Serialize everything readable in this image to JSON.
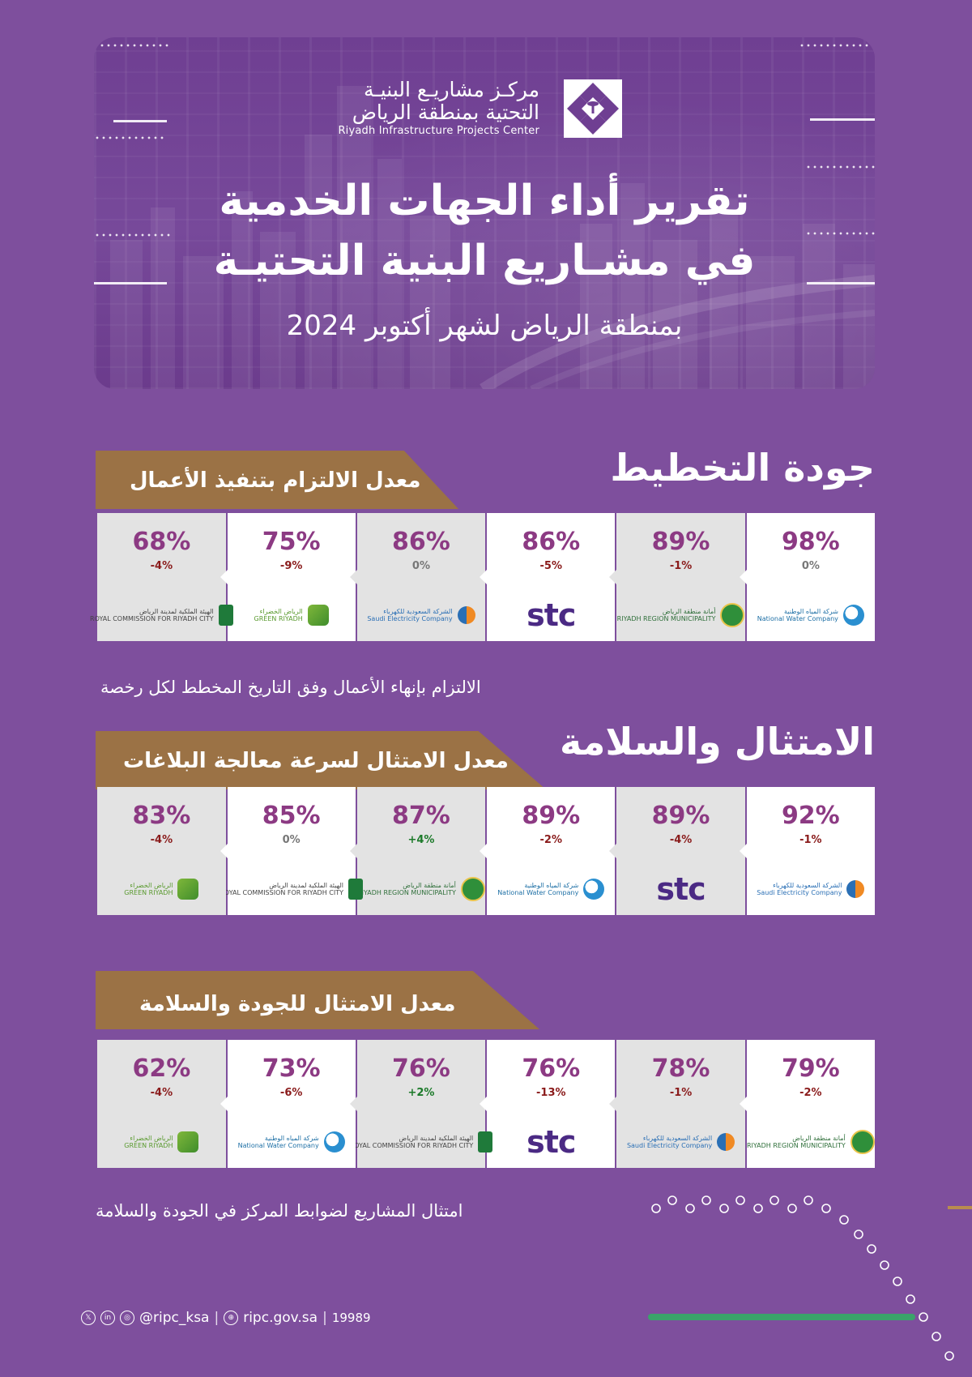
{
  "hero": {
    "logo_ar_line1": "مركـز مشاريـع البنيـة",
    "logo_ar_line2": "التحتية بمنطقة الرياض",
    "logo_en": "Riyadh Infrastructure Projects Center",
    "title_line1": "تقرير أداء الجهات الخدمية",
    "title_line2": "في مشـاريع البنية التحتيـة",
    "subtitle": "بمنطقة الرياض لشهر أكتوبر 2024"
  },
  "sections": [
    {
      "heading": "جودة التخطيط",
      "tab_label": "معدل الالتزام بتنفيذ الأعمال",
      "caption": "الالتزام بإنهاء الأعمال وفق التاريخ المخطط لكل رخصة",
      "cards": [
        {
          "pct": "98%",
          "change": "0%",
          "trend": "zero",
          "logo": "nwc",
          "logo_ar": "شركة المياه الوطنية",
          "logo_en": "National Water Company"
        },
        {
          "pct": "89%",
          "change": "-1%",
          "trend": "neg",
          "logo": "amana",
          "logo_ar": "أمانة منطقة الرياض",
          "logo_en": "RIYADH REGION MUNICIPALITY"
        },
        {
          "pct": "86%",
          "change": "-5%",
          "trend": "neg",
          "logo": "stc",
          "logo_ar": "stc",
          "logo_en": ""
        },
        {
          "pct": "86%",
          "change": "0%",
          "trend": "zero",
          "logo": "sec",
          "logo_ar": "الشركة السعودية للكهرباء",
          "logo_en": "Saudi Electricity Company"
        },
        {
          "pct": "75%",
          "change": "-9%",
          "trend": "neg",
          "logo": "green",
          "logo_ar": "الرياض الخضراء",
          "logo_en": "GREEN RIYADH"
        },
        {
          "pct": "68%",
          "change": "-4%",
          "trend": "neg",
          "logo": "rcrc",
          "logo_ar": "الهيئة الملكية لمدينة الرياض",
          "logo_en": "ROYAL COMMISSION FOR RIYADH CITY"
        }
      ]
    },
    {
      "heading": "الامتثال والسلامة",
      "tab_label": "معدل الامتثال لسرعة معالجة البلاغات",
      "caption": "",
      "cards": [
        {
          "pct": "92%",
          "change": "-1%",
          "trend": "neg",
          "logo": "sec",
          "logo_ar": "الشركة السعودية للكهرباء",
          "logo_en": "Saudi Electricity Company"
        },
        {
          "pct": "89%",
          "change": "-4%",
          "trend": "neg",
          "logo": "stc",
          "logo_ar": "stc",
          "logo_en": ""
        },
        {
          "pct": "89%",
          "change": "-2%",
          "trend": "neg",
          "logo": "nwc",
          "logo_ar": "شركة المياه الوطنية",
          "logo_en": "National Water Company"
        },
        {
          "pct": "87%",
          "change": "+4%",
          "trend": "pos",
          "logo": "amana",
          "logo_ar": "أمانة منطقة الرياض",
          "logo_en": "RIYADH REGION MUNICIPALITY"
        },
        {
          "pct": "85%",
          "change": "0%",
          "trend": "zero",
          "logo": "rcrc",
          "logo_ar": "الهيئة الملكية لمدينة الرياض",
          "logo_en": "ROYAL COMMISSION FOR RIYADH CITY"
        },
        {
          "pct": "83%",
          "change": "-4%",
          "trend": "neg",
          "logo": "green",
          "logo_ar": "الرياض الخضراء",
          "logo_en": "GREEN RIYADH"
        }
      ]
    },
    {
      "heading": "",
      "tab_label": "معدل الامتثال للجودة والسلامة",
      "caption": "امتثال المشاريع لضوابط المركز في الجودة والسلامة",
      "cards": [
        {
          "pct": "79%",
          "change": "-2%",
          "trend": "neg",
          "logo": "amana",
          "logo_ar": "أمانة منطقة الرياض",
          "logo_en": "RIYADH REGION MUNICIPALITY"
        },
        {
          "pct": "78%",
          "change": "-1%",
          "trend": "neg",
          "logo": "sec",
          "logo_ar": "الشركة السعودية للكهرباء",
          "logo_en": "Saudi Electricity Company"
        },
        {
          "pct": "76%",
          "change": "-13%",
          "trend": "neg",
          "logo": "stc",
          "logo_ar": "stc",
          "logo_en": ""
        },
        {
          "pct": "76%",
          "change": "+2%",
          "trend": "pos",
          "logo": "rcrc",
          "logo_ar": "الهيئة الملكية لمدينة الرياض",
          "logo_en": "ROYAL COMMISSION FOR RIYADH CITY"
        },
        {
          "pct": "73%",
          "change": "-6%",
          "trend": "neg",
          "logo": "nwc",
          "logo_ar": "شركة المياه الوطنية",
          "logo_en": "National Water Company"
        },
        {
          "pct": "62%",
          "change": "-4%",
          "trend": "neg",
          "logo": "green",
          "logo_ar": "الرياض الخضراء",
          "logo_en": "GREEN RIYADH"
        }
      ]
    }
  ],
  "footer": {
    "handle": "@ripc_ksa",
    "website": "ripc.gov.sa",
    "phone": "19989",
    "social_icons": [
      "x-icon",
      "linkedin-icon",
      "instagram-icon"
    ],
    "web_icon": "globe-icon"
  },
  "colors": {
    "background": "#7e4f9d",
    "tab": "#9b7245",
    "percent": "#8c3a83",
    "negative": "#8a1b1b",
    "positive": "#1c7a2a",
    "stc": "#4b2a84"
  }
}
